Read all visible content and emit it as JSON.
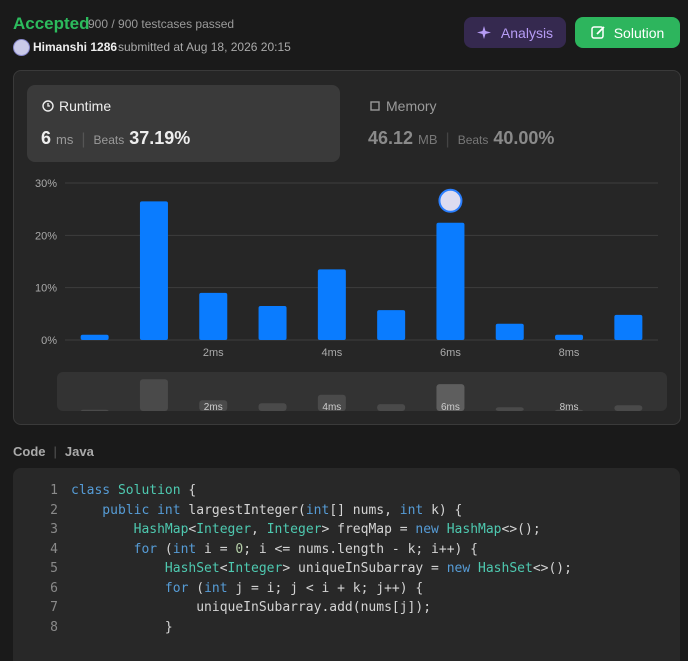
{
  "header": {
    "status": "Accepted",
    "testcases": "900 / 900 testcases passed",
    "user": "Himanshi 1286",
    "submitted": "submitted at Aug 18, 2026 20:15",
    "buttons": [
      "Analysis",
      "Solution"
    ]
  },
  "runtime": {
    "label": "Runtime",
    "value": "6",
    "unit": "ms",
    "beats_label": "Beats",
    "beats": "37.19%"
  },
  "memory": {
    "label": "Memory",
    "value": "46.12",
    "unit": "MB",
    "beats_label": "Beats",
    "beats": "40.00%"
  },
  "chart_data": {
    "type": "bar",
    "categories": [
      null,
      null,
      "2ms",
      null,
      "4ms",
      null,
      "6ms",
      null,
      "8ms",
      null
    ],
    "values": [
      1,
      26.5,
      9,
      6.5,
      13.5,
      5.7,
      22.4,
      3.1,
      1,
      4.8
    ],
    "color": "#0a7cff",
    "ylim": [
      0,
      30
    ],
    "yticks": [
      {
        "value": 0,
        "label": "0%"
      },
      {
        "value": 10,
        "label": "10%"
      },
      {
        "value": 20,
        "label": "20%"
      },
      {
        "value": 30,
        "label": "30%"
      }
    ],
    "grid": true
  },
  "code": {
    "label": "Code",
    "language": "Java",
    "numbers": [
      1,
      2,
      3,
      4,
      5,
      6,
      7,
      8
    ],
    "lines": [
      [
        [
          "class",
          "kw"
        ],
        [
          " Solution",
          "type"
        ],
        [
          " {",
          "p"
        ]
      ],
      [
        [
          "    public",
          "kw"
        ],
        [
          " int",
          "kw"
        ],
        [
          " largestInteger(",
          "p"
        ],
        [
          "int",
          "kw"
        ],
        [
          "[] nums, ",
          "p"
        ],
        [
          "int",
          "kw"
        ],
        [
          " k) {",
          "p"
        ]
      ],
      [
        [
          "        HashMap",
          "type"
        ],
        [
          "<",
          "p"
        ],
        [
          "Integer",
          "type"
        ],
        [
          ", ",
          "p"
        ],
        [
          "Integer",
          "type"
        ],
        [
          "> freqMap = ",
          "p"
        ],
        [
          "new",
          "kw"
        ],
        [
          " HashMap",
          "type"
        ],
        [
          "<>();",
          "p"
        ]
      ],
      [
        [
          "        for",
          "kw"
        ],
        [
          " (",
          "p"
        ],
        [
          "int",
          "kw"
        ],
        [
          " i = ",
          "p"
        ],
        [
          "0",
          "num"
        ],
        [
          "; i <= nums.length - k; i++) {",
          "p"
        ]
      ],
      [
        [
          "            HashSet",
          "type"
        ],
        [
          "<",
          "p"
        ],
        [
          "Integer",
          "type"
        ],
        [
          "> uniqueInSubarray = ",
          "p"
        ],
        [
          "new",
          "kw"
        ],
        [
          " HashSet",
          "type"
        ],
        [
          "<>();",
          "p"
        ]
      ],
      [
        [
          "            for",
          "kw"
        ],
        [
          " (",
          "p"
        ],
        [
          "int",
          "kw"
        ],
        [
          " j = i; j < i + k; j++) {",
          "p"
        ]
      ],
      [
        [
          "                uniqueInSubarray.add(nums[j]);",
          "p"
        ]
      ],
      [
        [
          "            }",
          "p"
        ]
      ]
    ]
  }
}
